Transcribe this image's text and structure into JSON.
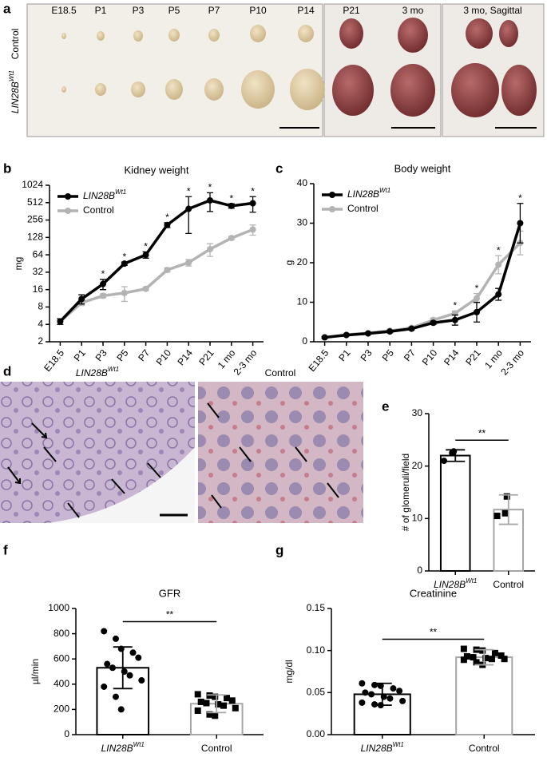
{
  "panel_labels": [
    "a",
    "b",
    "c",
    "d",
    "e",
    "f",
    "g"
  ],
  "panel_a": {
    "stages": [
      "E18.5",
      "P1",
      "P3",
      "P5",
      "P7",
      "P10",
      "P14",
      "P21",
      "3 mo",
      "3 mo, Sagittal"
    ],
    "row_labels": [
      "Control",
      "LIN28B"
    ],
    "row_label_sup": "Wt1"
  },
  "panel_d": {
    "labels": [
      "LIN28B",
      "Control"
    ],
    "label_sup": "Wt1"
  },
  "chart_data": [
    {
      "type": "line",
      "title": "Kidney weight",
      "ylabel": "mg",
      "yscale": "log",
      "log_base": 2,
      "categories": [
        "E18.5",
        "P1",
        "P3",
        "P5",
        "P7",
        "P10",
        "P14",
        "P21",
        "1 mo",
        "2-3 mo"
      ],
      "ylim": [
        2,
        1024
      ],
      "yticks": [
        2,
        4,
        8,
        16,
        32,
        64,
        128,
        256,
        512,
        1024
      ],
      "legend": "upper left",
      "series": [
        {
          "name": "LIN28B",
          "name_sup": "Wt1",
          "color": "#000000",
          "values": [
            4.5,
            11,
            20,
            45,
            64,
            210,
            400,
            560,
            450,
            500
          ],
          "errors": [
            0.5,
            2,
            4,
            3,
            8,
            20,
            250,
            200,
            40,
            150
          ]
        },
        {
          "name": "Control",
          "color": "#b3b3b3",
          "values": [
            4.5,
            9.5,
            12.5,
            14,
            16.5,
            35,
            47,
            80,
            125,
            175
          ],
          "errors": [
            0.5,
            1,
            1,
            4,
            1,
            3,
            6,
            20,
            8,
            35
          ]
        }
      ],
      "significance": [
        null,
        null,
        "*",
        "*",
        "*",
        "*",
        "*",
        "*",
        "*",
        "*"
      ]
    },
    {
      "type": "line",
      "title": "Body weight",
      "ylabel": "g",
      "categories": [
        "E18.5",
        "P1",
        "P3",
        "P5",
        "P7",
        "P10",
        "P14",
        "P21",
        "1 mo",
        "2-3 mo"
      ],
      "ylim": [
        0,
        40
      ],
      "yticks": [
        0,
        10,
        20,
        30,
        40
      ],
      "legend": "upper left",
      "series": [
        {
          "name": "LIN28B",
          "name_sup": "Wt1",
          "color": "#000000",
          "values": [
            1.1,
            1.7,
            2.1,
            2.6,
            3.3,
            4.8,
            5.5,
            7.5,
            12,
            30
          ],
          "errors": [
            0.2,
            0.2,
            0.2,
            0.3,
            0.3,
            0.4,
            1.3,
            2.5,
            1.5,
            5
          ]
        },
        {
          "name": "Control",
          "color": "#b3b3b3",
          "values": [
            1.1,
            1.8,
            2.2,
            2.8,
            3.5,
            5.5,
            7.2,
            11,
            19.5,
            25
          ],
          "errors": [
            0.2,
            0.2,
            0.2,
            0.2,
            0.3,
            0.5,
            0.6,
            1.2,
            2.3,
            3
          ]
        }
      ],
      "significance": [
        null,
        null,
        null,
        null,
        null,
        null,
        "*",
        "*",
        "*",
        "*"
      ]
    },
    {
      "type": "bar",
      "ylabel": "# of glomeruli/field",
      "categories": [
        "LIN28B",
        "Control"
      ],
      "category_sups": [
        "Wt1",
        null
      ],
      "colors": [
        "#000000",
        "#a6a6a6"
      ],
      "markers": [
        "circle",
        "square"
      ],
      "values": [
        22,
        11.7
      ],
      "errors": [
        1.1,
        2.8
      ],
      "points": [
        [
          21,
          22.5,
          22.8
        ],
        [
          10.5,
          11,
          14.2
        ]
      ],
      "ylim": [
        0,
        30
      ],
      "yticks": [
        0,
        10,
        20,
        30
      ],
      "significance": "**"
    },
    {
      "type": "bar",
      "title": "GFR",
      "ylabel": "µl/min",
      "categories": [
        "LIN28B",
        "Control"
      ],
      "category_sups": [
        "Wt1",
        null
      ],
      "colors": [
        "#000000",
        "#a6a6a6"
      ],
      "markers": [
        "circle",
        "square"
      ],
      "values": [
        530,
        245
      ],
      "errors": [
        165,
        70
      ],
      "points": [
        [
          820,
          760,
          680,
          650,
          610,
          560,
          530,
          500,
          470,
          430,
          380,
          300,
          200
        ],
        [
          320,
          310,
          300,
          290,
          270,
          260,
          250,
          240,
          230,
          210,
          190,
          160,
          150
        ]
      ],
      "ylim": [
        0,
        1000
      ],
      "yticks": [
        0,
        200,
        400,
        600,
        800,
        1000
      ],
      "significance": "**"
    },
    {
      "type": "bar",
      "title": "Creatinine",
      "ylabel": "mg/dl",
      "categories": [
        "LIN28B",
        "Control"
      ],
      "category_sups": [
        "Wt1",
        null
      ],
      "colors": [
        "#000000",
        "#a6a6a6"
      ],
      "markers": [
        "circle",
        "square"
      ],
      "values": [
        0.048,
        0.092
      ],
      "errors": [
        0.013,
        0.009
      ],
      "points": [
        [
          0.061,
          0.059,
          0.058,
          0.055,
          0.052,
          0.05,
          0.048,
          0.045,
          0.043,
          0.04,
          0.038,
          0.036,
          0.035
        ],
        [
          0.102,
          0.101,
          0.1,
          0.097,
          0.094,
          0.093,
          0.092,
          0.091,
          0.09,
          0.09,
          0.089,
          0.086,
          0.083
        ]
      ],
      "ylim": [
        0,
        0.15
      ],
      "yticks": [
        {
          "value": 0,
          "label": "0.00"
        },
        {
          "value": 0.05,
          "label": "0.05"
        },
        {
          "value": 0.1,
          "label": "0.10"
        },
        {
          "value": 0.15,
          "label": "0.15"
        }
      ],
      "significance": "**"
    }
  ]
}
